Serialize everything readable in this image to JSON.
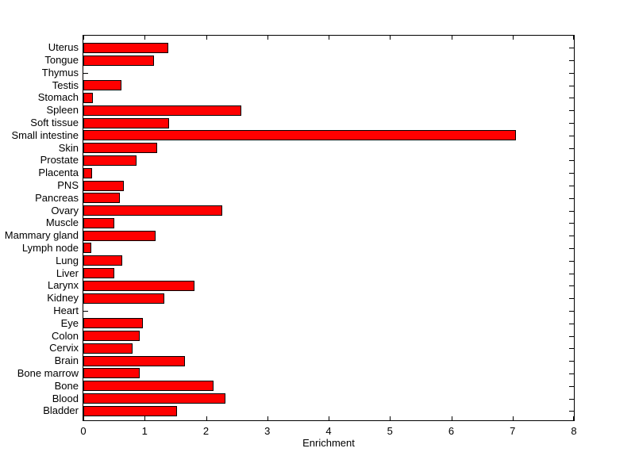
{
  "chart_data": {
    "type": "bar",
    "orientation": "horizontal",
    "title": "",
    "xlabel": "Enrichment",
    "ylabel": "",
    "xlim": [
      0,
      8
    ],
    "xticks": [
      "0",
      "1",
      "2",
      "3",
      "4",
      "5",
      "6",
      "7",
      "8"
    ],
    "grid": false,
    "legend": null,
    "bar_color": "#ff0000",
    "bar_edge_color": "#000000",
    "axis_color": "#000000",
    "background_color": "#ffffff",
    "categories_top_to_bottom": [
      "Uterus",
      "Tongue",
      "Thymus",
      "Testis",
      "Stomach",
      "Spleen",
      "Soft tissue",
      "Small intestine",
      "Skin",
      "Prostate",
      "Placenta",
      "PNS",
      "Pancreas",
      "Ovary",
      "Muscle",
      "Mammary gland",
      "Lymph node",
      "Lung",
      "Liver",
      "Larynx",
      "Kidney",
      "Heart",
      "Eye",
      "Colon",
      "Cervix",
      "Brain",
      "Bone marrow",
      "Bone",
      "Blood",
      "Bladder"
    ],
    "values": [
      1.38,
      1.15,
      0,
      0.62,
      0.15,
      2.57,
      1.4,
      7.05,
      1.21,
      0.87,
      0.14,
      0.66,
      0.6,
      2.27,
      0.5,
      1.18,
      0.13,
      0.63,
      0.51,
      1.81,
      1.32,
      0,
      0.97,
      0.92,
      0.8,
      1.66,
      0.92,
      2.12,
      2.32,
      1.53
    ]
  }
}
